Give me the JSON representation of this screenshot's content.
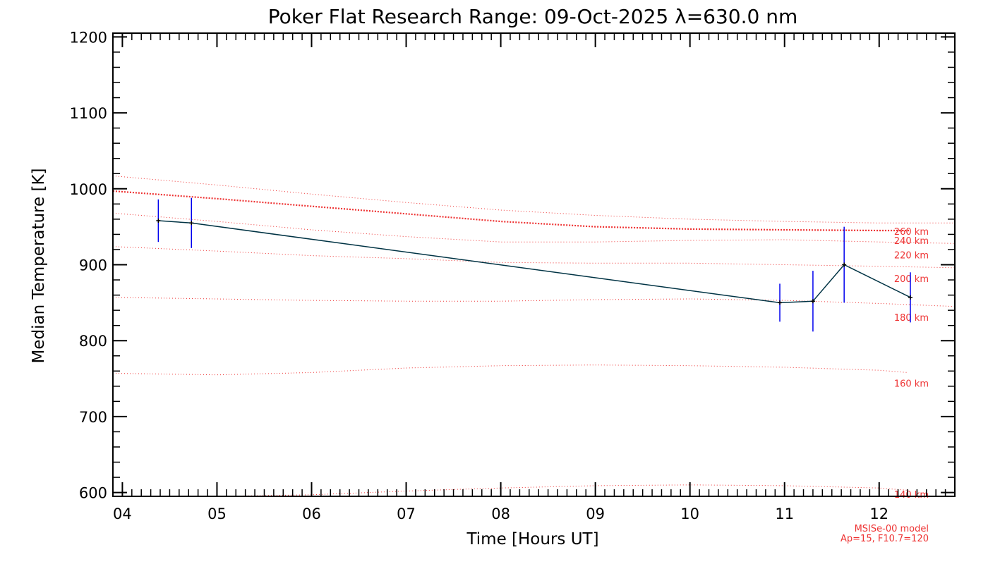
{
  "chart_data": {
    "type": "line",
    "title": "Poker Flat Research Range: 09-Oct-2025 λ=630.0 nm",
    "xlabel": "Time [Hours UT]",
    "ylabel": "Median Temperature [K]",
    "xlim": [
      3.9,
      12.8
    ],
    "ylim": [
      595,
      1205
    ],
    "x_ticks": [
      4,
      5,
      6,
      7,
      8,
      9,
      10,
      11,
      12
    ],
    "x_tick_labels": [
      "04",
      "05",
      "06",
      "07",
      "08",
      "09",
      "10",
      "11",
      "12"
    ],
    "y_ticks": [
      600,
      700,
      800,
      900,
      1000,
      1100,
      1200
    ],
    "y_tick_labels": [
      "600",
      "700",
      "800",
      "900",
      "1000",
      "1100",
      "1200"
    ],
    "grid": false,
    "series": [
      {
        "name": "Median Temperature",
        "color": "#003344",
        "error_color": "#0000ee",
        "points": [
          {
            "x": 4.38,
            "y": 958,
            "err": 28
          },
          {
            "x": 4.73,
            "y": 955,
            "err": 33
          },
          {
            "x": 10.95,
            "y": 850,
            "err": 25
          },
          {
            "x": 11.3,
            "y": 852,
            "err": 40
          },
          {
            "x": 11.63,
            "y": 900,
            "err": 50
          },
          {
            "x": 12.33,
            "y": 857,
            "err": 33
          }
        ]
      }
    ],
    "model_lines": [
      {
        "label": "260 km",
        "x": [
          3.9,
          5,
          6,
          7,
          8,
          9,
          10,
          11,
          12,
          12.33
        ],
        "y": [
          997,
          987,
          977,
          967,
          957,
          950,
          947,
          946,
          945,
          945
        ],
        "style": "thick"
      },
      {
        "label": "240 km",
        "x": [
          3.9,
          5,
          6,
          7,
          8,
          9,
          10,
          11,
          12,
          12.8
        ],
        "y": [
          1017,
          1005,
          993,
          982,
          972,
          965,
          960,
          957,
          955,
          955
        ],
        "style": "thin"
      },
      {
        "label": "220 km",
        "x": [
          3.9,
          5,
          6,
          7,
          8,
          9,
          10,
          11,
          12,
          12.8
        ],
        "y": [
          968,
          957,
          946,
          937,
          930,
          930,
          932,
          933,
          930,
          928
        ],
        "style": "thin"
      },
      {
        "label": "200 km",
        "x": [
          3.9,
          5,
          6,
          7,
          8,
          9,
          10,
          11,
          12,
          12.8
        ],
        "y": [
          924,
          918,
          912,
          908,
          903,
          902,
          902,
          900,
          898,
          896
        ],
        "style": "thin"
      },
      {
        "label": "180 km",
        "x": [
          3.9,
          5,
          6,
          7,
          8,
          9,
          10,
          11,
          12,
          12.8
        ],
        "y": [
          857,
          855,
          853,
          852,
          852,
          854,
          855,
          853,
          849,
          845
        ],
        "style": "thin"
      },
      {
        "label": "160 km",
        "x": [
          3.9,
          5,
          6,
          7,
          8,
          9,
          10,
          11,
          12,
          12.3
        ],
        "y": [
          757,
          755,
          758,
          764,
          767,
          768,
          767,
          765,
          761,
          758
        ],
        "style": "thin"
      },
      {
        "label": "140 km",
        "x": [
          3.9,
          5,
          6,
          7,
          8,
          9,
          10,
          11,
          12,
          12.3
        ],
        "y": [
          595,
          595,
          597,
          602,
          606,
          609,
          610,
          609,
          606,
          603
        ],
        "style": "thin"
      }
    ],
    "model_label_positions_km": [
      "260 km",
      "240 km",
      "220 km",
      "200 km",
      "180 km",
      "160 km",
      "140 km"
    ],
    "model_note_line1": "MSISe-00 model",
    "model_note_line2": "Ap=15, F10.7=120",
    "colors": {
      "data_line": "#003344",
      "error_bars": "#0000ee",
      "model": "#ee3333",
      "axes": "#000000"
    }
  }
}
